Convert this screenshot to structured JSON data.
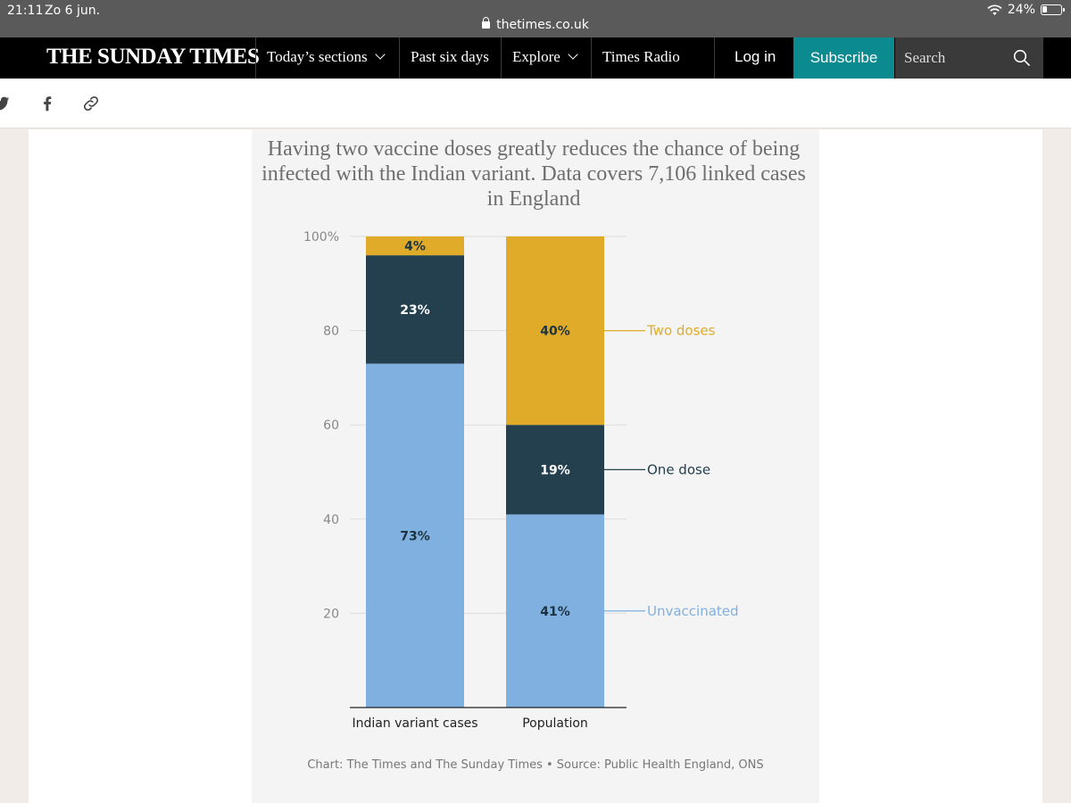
{
  "status_bar": {
    "time": "21:11",
    "date": "Zo 6 jun.",
    "url": "thetimes.co.uk",
    "battery": "24%",
    "battery_level": 0.24
  },
  "nav": {
    "logo": "THE SUNDAY TIMES",
    "items": [
      "Today’s sections",
      "Past six days",
      "Explore",
      "Times Radio"
    ],
    "login": "Log in",
    "subscribe": "Subscribe",
    "search_placeholder": "Search"
  },
  "share": {
    "icons": [
      "twitter-icon",
      "facebook-icon",
      "link-icon"
    ]
  },
  "colors": {
    "two_doses": "#dfab28",
    "one_dose": "#24404e",
    "unvaccinated": "#7fb0e0",
    "accent": "#0b8a8f"
  },
  "chart_data": {
    "type": "bar",
    "stacked": true,
    "title": "Having two vaccine doses greatly reduces the chance of being infected with the Indian variant. Data covers 7,106 linked cases in England",
    "categories": [
      "Indian variant cases",
      "Population"
    ],
    "series": [
      {
        "name": "Unvaccinated",
        "values": [
          73,
          41
        ],
        "labels": [
          "73%",
          "41%"
        ]
      },
      {
        "name": "One dose",
        "values": [
          23,
          19
        ],
        "labels": [
          "23%",
          "19%"
        ]
      },
      {
        "name": "Two doses",
        "values": [
          4,
          40
        ],
        "labels": [
          "4%",
          "40%"
        ]
      }
    ],
    "ylim": [
      0,
      100
    ],
    "yticks": [
      20,
      40,
      60,
      80,
      100
    ],
    "ytick_labels": [
      "20",
      "40",
      "60",
      "80",
      "100%"
    ],
    "legend": "right (labels next to Population bar)",
    "source": "Chart: The Times and The Sunday Times • Source: Public Health England, ONS"
  }
}
